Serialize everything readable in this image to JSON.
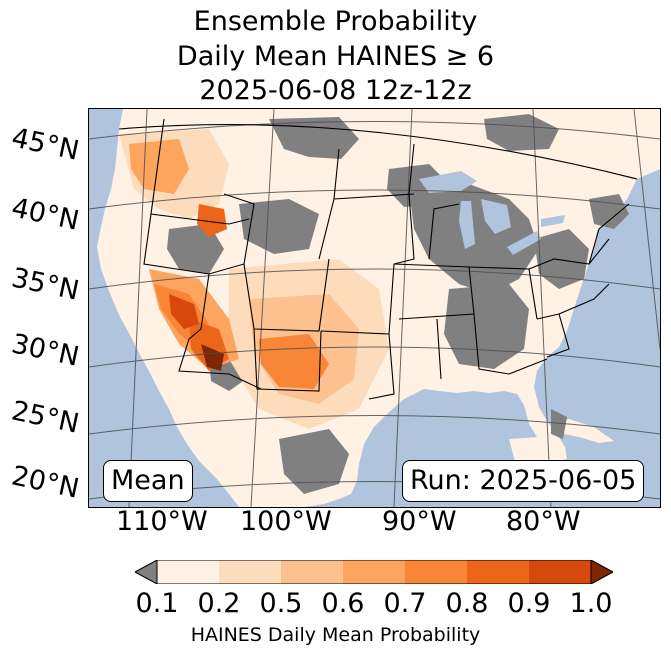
{
  "title": {
    "line1": "Ensemble Probability",
    "line2": "Daily Mean HAINES ≥ 6",
    "line3": "2025-06-08 12z-12z"
  },
  "lat_labels": [
    "45°N",
    "40°N",
    "35°N",
    "30°N",
    "25°N",
    "20°N"
  ],
  "lon_labels": [
    "110°W",
    "100°W",
    "90°W",
    "80°W"
  ],
  "mean_label": "Mean",
  "run_label": "Run: 2025-06-05",
  "colorbar": {
    "ticks": [
      "0.1",
      "0.2",
      "0.5",
      "0.6",
      "0.7",
      "0.8",
      "0.9",
      "1.0"
    ],
    "label": "HAINES Daily Mean Probability",
    "under_color": "#808080",
    "over_color": "#7f2704",
    "colors": [
      "#fff1e4",
      "#fddcbc",
      "#fdc08f",
      "#fda45f",
      "#f98637",
      "#ec661a",
      "#d7490a"
    ]
  },
  "colors": {
    "ocean": "#b0c4de",
    "land": "#fff1e4",
    "no_data": "#808080"
  }
}
